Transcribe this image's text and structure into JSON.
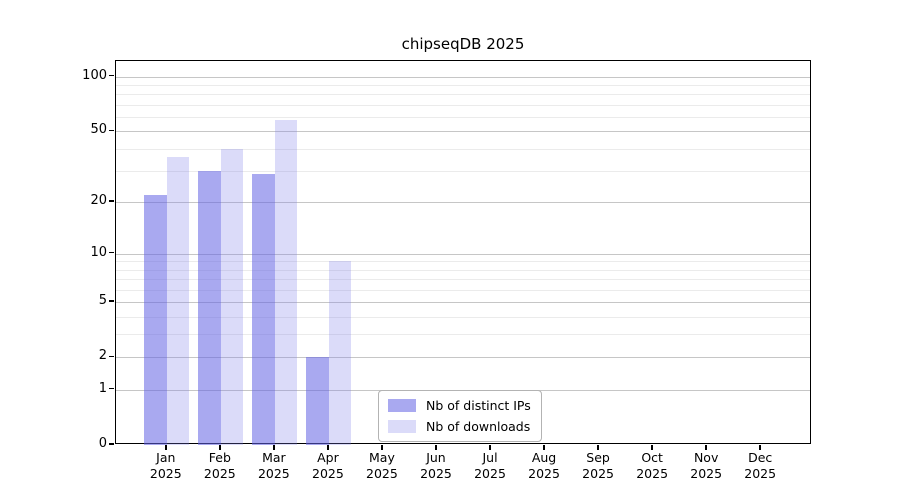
{
  "chart_data": {
    "type": "bar",
    "title": "chipseqDB 2025",
    "categories": [
      "Jan",
      "Feb",
      "Mar",
      "Apr",
      "May",
      "Jun",
      "Jul",
      "Aug",
      "Sep",
      "Oct",
      "Nov",
      "Dec"
    ],
    "year_label": "2025",
    "series": [
      {
        "name": "Nb of distinct IPs",
        "color": "rgba(98,98,228,0.55)",
        "values": [
          22,
          30,
          29,
          2,
          0,
          0,
          0,
          0,
          0,
          0,
          0,
          0
        ]
      },
      {
        "name": "Nb of downloads",
        "color": "rgba(125,125,235,0.28)",
        "values": [
          36,
          40,
          58,
          9,
          0,
          0,
          0,
          0,
          0,
          0,
          0,
          0
        ]
      }
    ],
    "yscale": "log1p",
    "yticks": [
      0,
      1,
      2,
      5,
      10,
      20,
      50,
      100
    ],
    "minor_yticks": [
      3,
      4,
      6,
      7,
      8,
      9,
      30,
      40,
      60,
      70,
      80,
      90
    ],
    "ylim": [
      0,
      122
    ],
    "xlabel": "",
    "ylabel": "",
    "grid": "horizontal major+minor",
    "legend_position": "lower center"
  }
}
